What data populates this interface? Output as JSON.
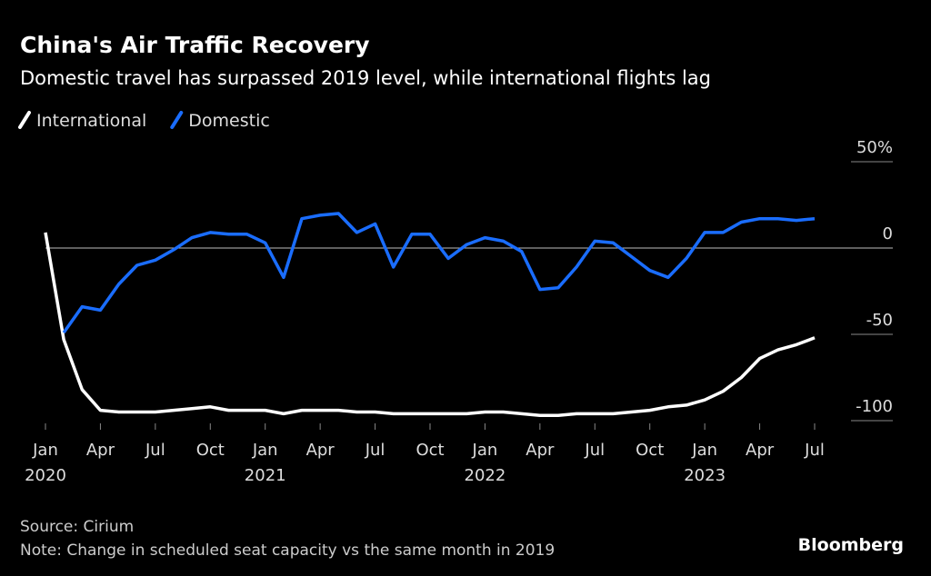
{
  "chart_data": {
    "type": "line",
    "title": "China's Air Traffic Recovery",
    "subtitle": "Domestic travel has surpassed 2019 level, while international flights lag",
    "x": [
      "2020-01",
      "2020-02",
      "2020-03",
      "2020-04",
      "2020-05",
      "2020-06",
      "2020-07",
      "2020-08",
      "2020-09",
      "2020-10",
      "2020-11",
      "2020-12",
      "2021-01",
      "2021-02",
      "2021-03",
      "2021-04",
      "2021-05",
      "2021-06",
      "2021-07",
      "2021-08",
      "2021-09",
      "2021-10",
      "2021-11",
      "2021-12",
      "2022-01",
      "2022-02",
      "2022-03",
      "2022-04",
      "2022-05",
      "2022-06",
      "2022-07",
      "2022-08",
      "2022-09",
      "2022-10",
      "2022-11",
      "2022-12",
      "2023-01",
      "2023-02",
      "2023-03",
      "2023-04",
      "2023-05",
      "2023-06",
      "2023-07"
    ],
    "xlim": [
      "2020-01",
      "2023-07"
    ],
    "xticks": [
      {
        "value": "2020-01",
        "label": "Jan"
      },
      {
        "value": "2020-04",
        "label": "Apr"
      },
      {
        "value": "2020-07",
        "label": "Jul"
      },
      {
        "value": "2020-10",
        "label": "Oct"
      },
      {
        "value": "2021-01",
        "label": "Jan"
      },
      {
        "value": "2021-04",
        "label": "Apr"
      },
      {
        "value": "2021-07",
        "label": "Jul"
      },
      {
        "value": "2021-10",
        "label": "Oct"
      },
      {
        "value": "2022-01",
        "label": "Jan"
      },
      {
        "value": "2022-04",
        "label": "Apr"
      },
      {
        "value": "2022-07",
        "label": "Jul"
      },
      {
        "value": "2022-10",
        "label": "Oct"
      },
      {
        "value": "2023-01",
        "label": "Jan"
      },
      {
        "value": "2023-04",
        "label": "Apr"
      },
      {
        "value": "2023-07",
        "label": "Jul"
      }
    ],
    "xtick_years": [
      {
        "value": "2020-01",
        "label": "2020"
      },
      {
        "value": "2021-01",
        "label": "2021"
      },
      {
        "value": "2022-01",
        "label": "2022"
      },
      {
        "value": "2023-01",
        "label": "2023"
      }
    ],
    "ylim": [
      -100,
      50
    ],
    "yticks": [
      -100,
      -50,
      0,
      {
        "value": 50,
        "label": "50%"
      }
    ],
    "series": [
      {
        "name": "International",
        "color": "#ffffff",
        "values": [
          9,
          -53,
          -82,
          -94,
          -95,
          -95,
          -95,
          -94,
          -93,
          -92,
          -94,
          -94,
          -94,
          -96,
          -94,
          -94,
          -94,
          -95,
          -95,
          -96,
          -96,
          -96,
          -96,
          -96,
          -95,
          -95,
          -96,
          -97,
          -97,
          -96,
          -96,
          -96,
          -95,
          -94,
          -92,
          -91,
          -88,
          -83,
          -75,
          -64,
          -59,
          -56,
          -52
        ]
      },
      {
        "name": "Domestic",
        "color": "#1a6dff",
        "values": [
          null,
          -49,
          -34,
          -36,
          -21,
          -10,
          -7,
          -1,
          6,
          9,
          8,
          8,
          3,
          -17,
          17,
          19,
          20,
          9,
          14,
          -11,
          8,
          8,
          -6,
          2,
          6,
          4,
          -2,
          -24,
          -23,
          -11,
          4,
          3,
          -5,
          -13,
          -17,
          -6,
          9,
          9,
          15,
          17,
          17,
          16,
          17
        ]
      }
    ],
    "legend": "top-left",
    "source": "Source: Cirium",
    "note": "Note: Change in scheduled seat capacity vs the same month in 2019",
    "brand": "Bloomberg"
  }
}
